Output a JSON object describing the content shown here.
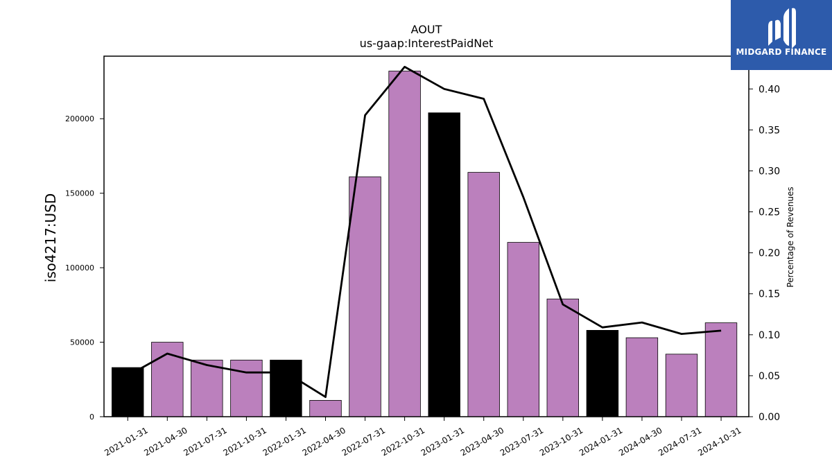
{
  "chart_data": {
    "type": "bar",
    "title": "AOUT",
    "subtitle": "us-gaap:InterestPaidNet",
    "ylabel": "iso4217:USD",
    "y2label": "Percentage of Revenues",
    "categories": [
      "2021-01-31",
      "2021-04-30",
      "2021-07-31",
      "2021-10-31",
      "2022-01-31",
      "2022-04-30",
      "2022-07-31",
      "2022-10-31",
      "2023-01-31",
      "2023-04-30",
      "2023-07-31",
      "2023-10-31",
      "2024-01-31",
      "2024-04-30",
      "2024-07-31",
      "2024-10-31"
    ],
    "values": [
      33000,
      50000,
      38000,
      38000,
      38000,
      11000,
      161000,
      232000,
      204000,
      164000,
      117000,
      79000,
      58000,
      53000,
      42000,
      63000
    ],
    "bar_colors": [
      "#000000",
      "#bb80bd",
      "#bb80bd",
      "#bb80bd",
      "#000000",
      "#bb80bd",
      "#bb80bd",
      "#bb80bd",
      "#000000",
      "#bb80bd",
      "#bb80bd",
      "#bb80bd",
      "#000000",
      "#bb80bd",
      "#bb80bd",
      "#bb80bd"
    ],
    "line_values": [
      0.05,
      0.077,
      0.063,
      0.054,
      0.054,
      0.024,
      0.368,
      0.427,
      0.4,
      0.388,
      0.268,
      0.137,
      0.109,
      0.115,
      0.101,
      0.105
    ],
    "line_color": "#000000",
    "ylim": [
      0,
      242000
    ],
    "y2lim": [
      0,
      0.44
    ],
    "yticks": [
      0,
      50000,
      100000,
      150000,
      200000
    ],
    "ytick_labels": [
      "0",
      "50000",
      "100000",
      "150000",
      "200000"
    ],
    "y2ticks": [
      0,
      0.05,
      0.1,
      0.15,
      0.2,
      0.25,
      0.3,
      0.35,
      0.4
    ],
    "y2tick_labels": [
      "0.00",
      "0.05",
      "0.10",
      "0.15",
      "0.20",
      "0.25",
      "0.30",
      "0.35",
      "0.40"
    ],
    "grid": false,
    "legend": "none"
  },
  "logo": {
    "text": "MIDGARD FINANCE",
    "icon": "midgard-logo-icon",
    "background": "#2d5bab"
  }
}
